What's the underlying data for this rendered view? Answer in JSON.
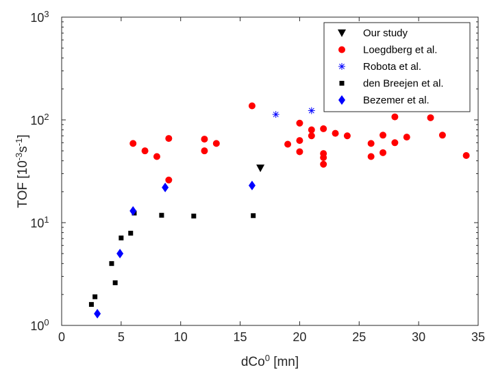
{
  "chart_data": {
    "type": "scatter",
    "xlabel": {
      "base": "dCo",
      "sup": "0",
      "suffix": " [mn]"
    },
    "ylabel": {
      "prefix": "TOF [10",
      "sup1": "-3",
      "mid": "s",
      "sup2": "-1",
      "suffix": "]"
    },
    "xlim": [
      0,
      35
    ],
    "ylim": [
      1,
      1000
    ],
    "yscale": "log",
    "grid": false,
    "legend_position": "top-right",
    "x_ticks": [
      "0",
      "5",
      "10",
      "15",
      "20",
      "25",
      "30",
      "35"
    ],
    "y_ticks": [
      {
        "base": "10",
        "exp": "0"
      },
      {
        "base": "10",
        "exp": "1"
      },
      {
        "base": "10",
        "exp": "2"
      },
      {
        "base": "10",
        "exp": "3"
      }
    ],
    "series": [
      {
        "name": "Our study",
        "marker": "triangle-down",
        "color": "#000000",
        "points": [
          [
            16.7,
            34
          ]
        ]
      },
      {
        "name": "Loegdberg et al.",
        "marker": "circle",
        "color": "#ff0000",
        "points": [
          [
            6,
            59
          ],
          [
            7,
            50
          ],
          [
            8,
            44
          ],
          [
            9,
            66
          ],
          [
            9,
            26
          ],
          [
            12,
            65
          ],
          [
            12,
            50
          ],
          [
            13,
            59
          ],
          [
            16,
            137
          ],
          [
            19,
            58
          ],
          [
            20,
            93
          ],
          [
            20,
            63
          ],
          [
            20,
            49
          ],
          [
            21,
            80
          ],
          [
            21,
            70
          ],
          [
            22,
            82
          ],
          [
            22,
            47
          ],
          [
            22,
            43
          ],
          [
            22,
            37
          ],
          [
            23,
            74
          ],
          [
            24,
            70
          ],
          [
            26,
            59
          ],
          [
            26,
            44
          ],
          [
            27,
            71
          ],
          [
            27,
            48
          ],
          [
            28,
            107
          ],
          [
            28,
            60
          ],
          [
            29,
            68
          ],
          [
            31,
            105
          ],
          [
            32,
            71
          ],
          [
            34,
            45
          ]
        ]
      },
      {
        "name": "Robota et al.",
        "marker": "asterisk",
        "color": "#0000ff",
        "points": [
          [
            18,
            113
          ],
          [
            21,
            123
          ]
        ]
      },
      {
        "name": "den Breejen et al.",
        "marker": "square",
        "color": "#000000",
        "points": [
          [
            2.5,
            1.6
          ],
          [
            2.8,
            1.9
          ],
          [
            4.2,
            4.0
          ],
          [
            4.5,
            2.6
          ],
          [
            5.0,
            7.1
          ],
          [
            5.8,
            7.9
          ],
          [
            6.1,
            12.4
          ],
          [
            8.4,
            11.8
          ],
          [
            11.1,
            11.6
          ],
          [
            16.1,
            11.7
          ]
        ]
      },
      {
        "name": "Bezemer et al.",
        "marker": "diamond",
        "color": "#0000ff",
        "points": [
          [
            3,
            1.3
          ],
          [
            4.9,
            5.0
          ],
          [
            6,
            13
          ],
          [
            8.7,
            22
          ],
          [
            16,
            23
          ]
        ]
      }
    ]
  }
}
